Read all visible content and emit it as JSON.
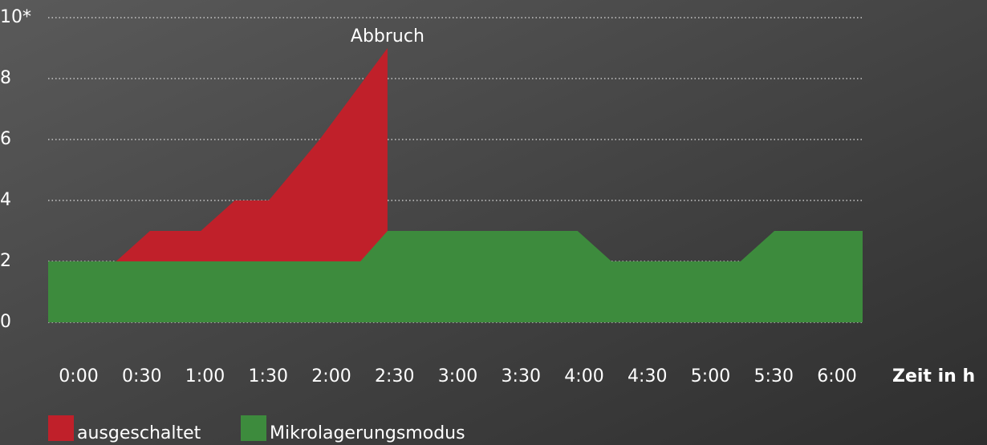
{
  "chart_data": {
    "type": "area",
    "x_label": "Zeit in h",
    "annotation": "Abbruch",
    "xlim": [
      0,
      6
    ],
    "xticks": [
      {
        "value": 0,
        "label": "0:00"
      },
      {
        "value": 0.5,
        "label": "0:30"
      },
      {
        "value": 1,
        "label": "1:00"
      },
      {
        "value": 1.5,
        "label": "1:30"
      },
      {
        "value": 2,
        "label": "2:00"
      },
      {
        "value": 2.5,
        "label": "2:30"
      },
      {
        "value": 3,
        "label": "3:00"
      },
      {
        "value": 3.5,
        "label": "3:30"
      },
      {
        "value": 4,
        "label": "4:00"
      },
      {
        "value": 4.5,
        "label": "4:30"
      },
      {
        "value": 5,
        "label": "5:00"
      },
      {
        "value": 5.5,
        "label": "5:30"
      },
      {
        "value": 6,
        "label": "6:00"
      }
    ],
    "ylim": [
      0,
      10
    ],
    "yticks": [
      0,
      2,
      4,
      6,
      8,
      {
        "value": 10,
        "label": "10*"
      }
    ],
    "grid": true,
    "series": [
      {
        "name": "ausgeschaltet",
        "color": "#c0202a",
        "x": [
          0.5,
          0.75,
          1.125,
          1.375,
          1.625,
          2.0,
          2.5
        ],
        "values": [
          2,
          3,
          3,
          4,
          4,
          6,
          9
        ]
      },
      {
        "name": "Mikrolagerungsmodus",
        "color": "#3d8b3d",
        "x": [
          0,
          2.3,
          2.5,
          3.9,
          4.15,
          5.1,
          5.35,
          6
        ],
        "values": [
          2,
          2,
          3,
          3,
          2,
          2,
          3,
          3
        ]
      }
    ]
  }
}
